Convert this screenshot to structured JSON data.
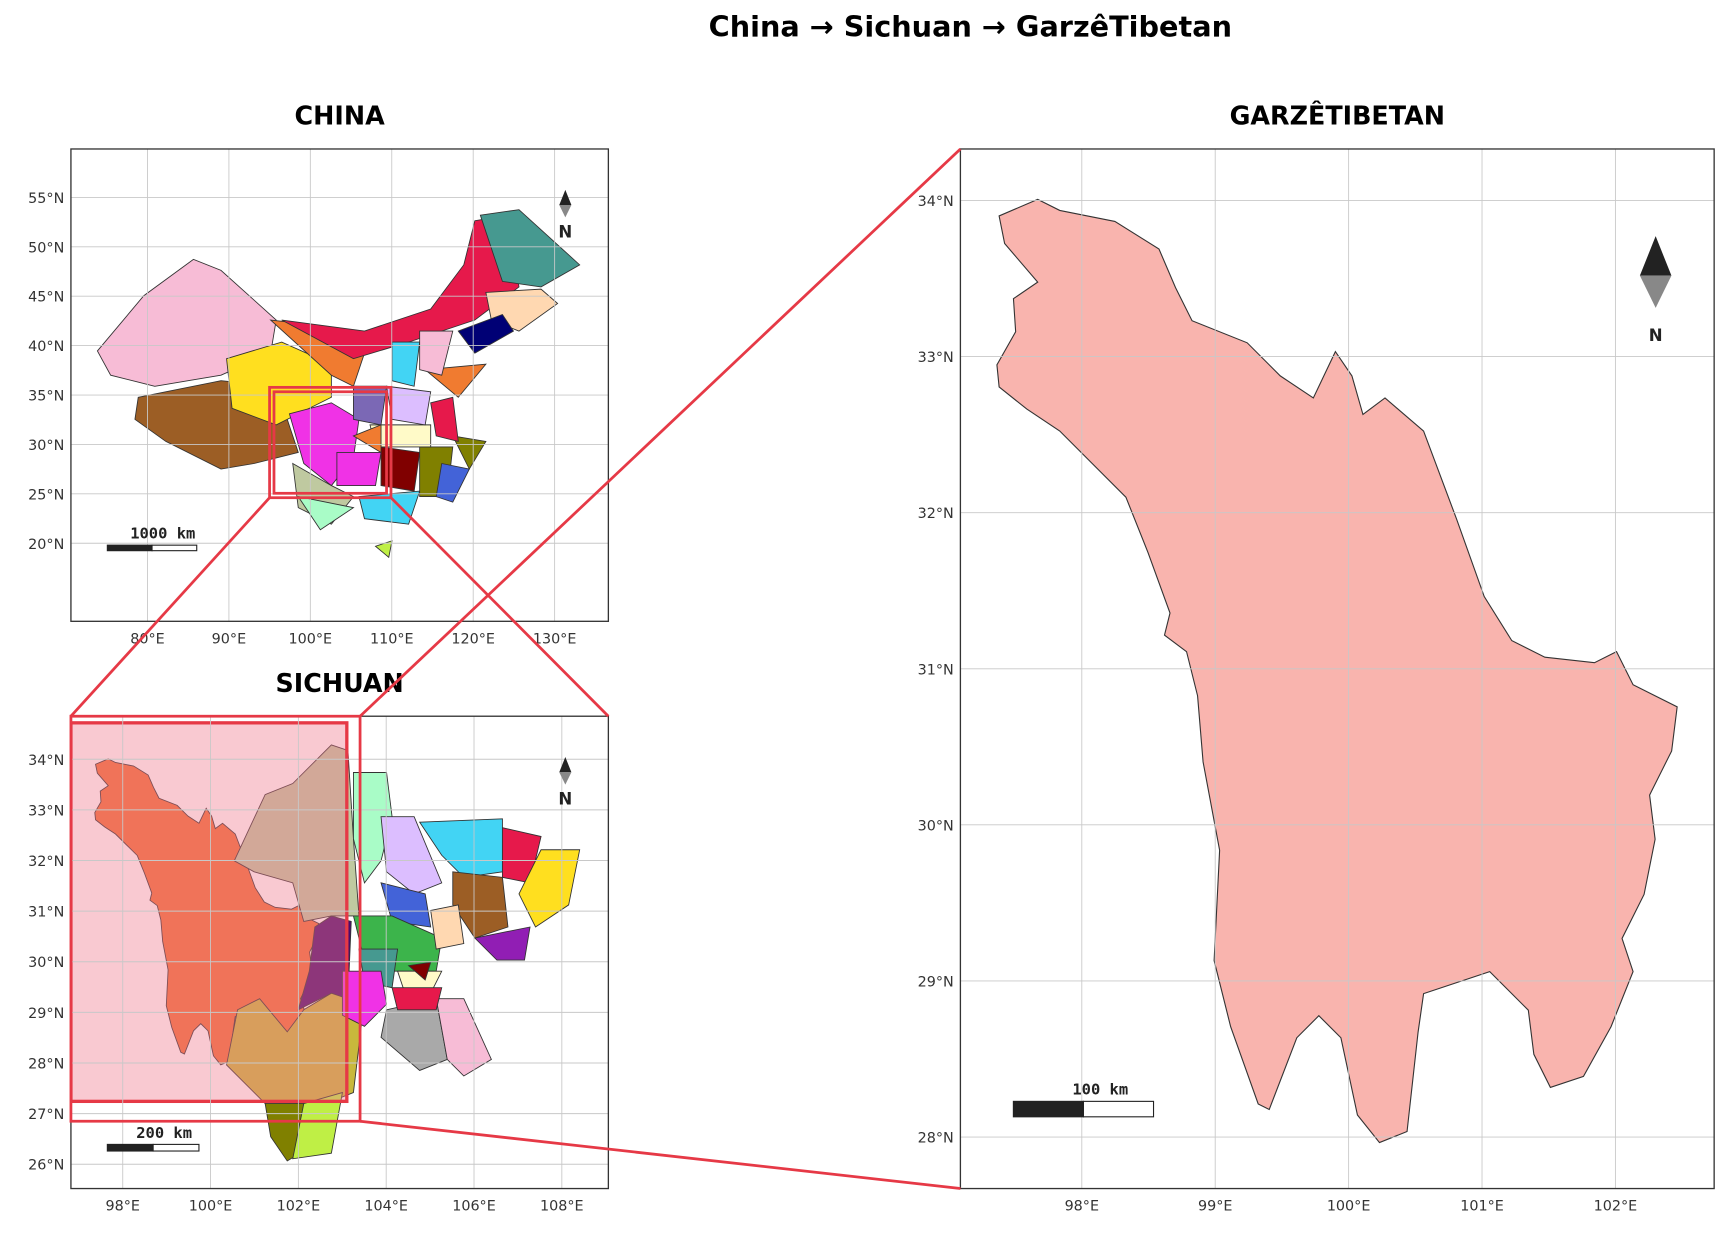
{
  "title": "China  →  Sichuan  →  GarzêTibetan",
  "panels": [
    {
      "title": "CHINA",
      "xlim": [
        70.6,
        136.6
      ],
      "ylim": [
        12.1,
        59.9
      ],
      "xticks": [
        {
          "value": 80,
          "label": "80°E"
        },
        {
          "value": 90,
          "label": "90°E"
        },
        {
          "value": 100,
          "label": "100°E"
        },
        {
          "value": 110,
          "label": "110°E"
        },
        {
          "value": 120,
          "label": "120°E"
        },
        {
          "value": 130,
          "label": "130°E"
        }
      ],
      "yticks": [
        {
          "value": 20,
          "label": "20°N"
        },
        {
          "value": 25,
          "label": "25°N"
        },
        {
          "value": 30,
          "label": "30°N"
        },
        {
          "value": 35,
          "label": "35°N"
        },
        {
          "value": 40,
          "label": "40°N"
        },
        {
          "value": 45,
          "label": "45°N"
        },
        {
          "value": 50,
          "label": "50°N"
        },
        {
          "value": 55,
          "label": "55°N"
        }
      ],
      "scale_bar": "1000 km",
      "north": "N"
    },
    {
      "title": "SICHUAN",
      "xlim": [
        96.82,
        109.06
      ],
      "ylim": [
        25.52,
        34.85
      ],
      "xticks": [
        {
          "value": 98,
          "label": "98°E"
        },
        {
          "value": 100,
          "label": "100°E"
        },
        {
          "value": 102,
          "label": "102°E"
        },
        {
          "value": 104,
          "label": "104°E"
        },
        {
          "value": 106,
          "label": "106°E"
        },
        {
          "value": 108,
          "label": "108°E"
        }
      ],
      "yticks": [
        {
          "value": 26,
          "label": "26°N"
        },
        {
          "value": 27,
          "label": "27°N"
        },
        {
          "value": 28,
          "label": "28°N"
        },
        {
          "value": 29,
          "label": "29°N"
        },
        {
          "value": 30,
          "label": "30°N"
        },
        {
          "value": 31,
          "label": "31°N"
        },
        {
          "value": 32,
          "label": "32°N"
        },
        {
          "value": 33,
          "label": "33°N"
        },
        {
          "value": 34,
          "label": "34°N"
        }
      ],
      "scale_bar": "200 km",
      "north": "N"
    },
    {
      "title": "GARZÊTIBETAN",
      "xlim": [
        97.09,
        102.74
      ],
      "ylim": [
        27.67,
        34.33
      ],
      "xticks": [
        {
          "value": 98,
          "label": "98°E"
        },
        {
          "value": 99,
          "label": "99°E"
        },
        {
          "value": 100,
          "label": "100°E"
        },
        {
          "value": 101,
          "label": "101°E"
        },
        {
          "value": 102,
          "label": "102°E"
        }
      ],
      "yticks": [
        {
          "value": 28,
          "label": "28°N"
        },
        {
          "value": 29,
          "label": "29°N"
        },
        {
          "value": 30,
          "label": "30°N"
        },
        {
          "value": 31,
          "label": "31°N"
        },
        {
          "value": 32,
          "label": "32°N"
        },
        {
          "value": 33,
          "label": "33°N"
        },
        {
          "value": 34,
          "label": "34°N"
        }
      ],
      "scale_bar": "100 km",
      "north": "N"
    }
  ]
}
